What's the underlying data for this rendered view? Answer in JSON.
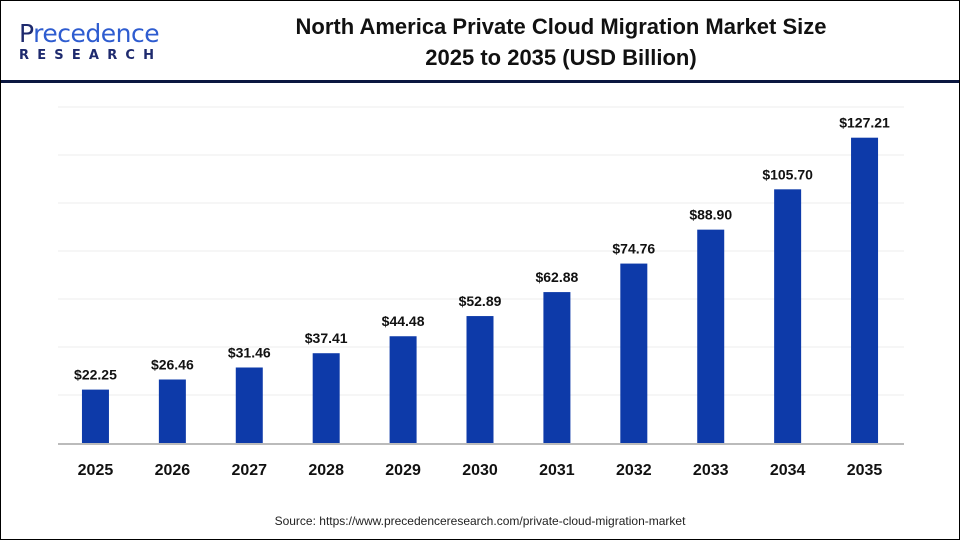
{
  "logo": {
    "text_top_first": "P",
    "text_top_rest": "recedence",
    "text_bottom": "RESEARCH"
  },
  "title_line1": "North America Private Cloud Migration Market Size",
  "title_line2": "2025 to 2035 (USD Billion)",
  "source": "Source: https://www.precedenceresearch.com/private-cloud-migration-market",
  "chart_data": {
    "type": "bar",
    "title": "North America Private Cloud Migration Market Size 2025 to 2035 (USD Billion)",
    "categories": [
      "2025",
      "2026",
      "2027",
      "2028",
      "2029",
      "2030",
      "2031",
      "2032",
      "2033",
      "2034",
      "2035"
    ],
    "values": [
      22.25,
      26.46,
      31.46,
      37.41,
      44.48,
      52.89,
      62.88,
      74.76,
      88.9,
      105.7,
      127.21
    ],
    "labels": [
      "$22.25",
      "$26.46",
      "$31.46",
      "$37.41",
      "$44.48",
      "$52.89",
      "$62.88",
      "$74.76",
      "$88.90",
      "$105.70",
      "$127.21"
    ],
    "ylim": [
      0,
      140
    ],
    "grid": true,
    "bar_color": "#0d3aa9"
  }
}
